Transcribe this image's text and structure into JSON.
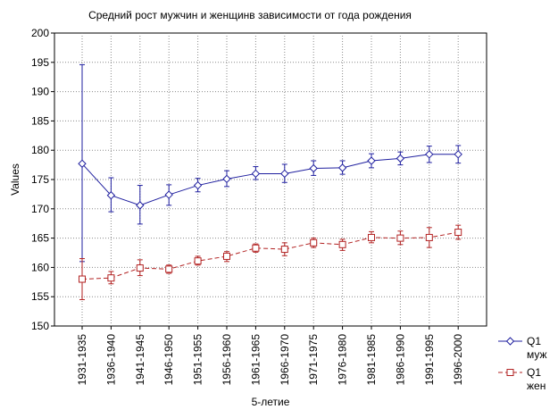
{
  "chart_data": {
    "type": "line",
    "title": "Средний рост мужчин и женщинв зависимости от года рождения",
    "xlabel": "5-летие",
    "ylabel": "Values",
    "ylim": [
      150,
      200
    ],
    "yticks": [
      "150",
      "155",
      "160",
      "165",
      "170",
      "175",
      "180",
      "185",
      "190",
      "195",
      "200"
    ],
    "grid": true,
    "legend_position": "bottom-right outside",
    "categories": [
      "1931-1935",
      "1936-1940",
      "1941-1945",
      "1946-1950",
      "1951-1955",
      "1956-1960",
      "1961-1965",
      "1966-1970",
      "1971-1975",
      "1976-1980",
      "1981-1985",
      "1986-1990",
      "1991-1995",
      "1996-2000"
    ],
    "series": [
      {
        "name": "Q1 муж",
        "legend_line1": "Q1",
        "legend_line2": "муж",
        "color": "#1f1f9f",
        "marker": "diamond",
        "line_style": "solid",
        "values": [
          177.7,
          172.3,
          170.6,
          172.4,
          174.0,
          175.1,
          176.0,
          176.0,
          176.9,
          177.0,
          178.2,
          178.6,
          179.3,
          179.3
        ],
        "err_low": [
          161.0,
          169.5,
          167.4,
          170.6,
          172.9,
          173.8,
          175.0,
          174.5,
          175.7,
          175.9,
          177.0,
          177.5,
          177.9,
          177.8
        ],
        "err_high": [
          194.6,
          175.3,
          174.0,
          174.1,
          175.2,
          176.5,
          177.2,
          177.6,
          178.2,
          178.2,
          179.4,
          179.7,
          180.7,
          180.8
        ]
      },
      {
        "name": "Q1 жен",
        "legend_line1": "Q1",
        "legend_line2": "жен",
        "color": "#b22222",
        "marker": "square",
        "line_style": "dashed",
        "values": [
          158.0,
          158.2,
          159.9,
          159.7,
          161.1,
          161.9,
          163.3,
          163.1,
          164.2,
          163.9,
          165.1,
          165.0,
          165.1,
          166.0
        ],
        "err_low": [
          154.5,
          157.2,
          158.6,
          159.0,
          160.4,
          161.0,
          162.6,
          162.0,
          163.4,
          162.9,
          164.2,
          163.9,
          163.4,
          164.8
        ],
        "err_high": [
          161.5,
          159.3,
          161.3,
          160.4,
          161.9,
          162.7,
          164.0,
          164.2,
          165.0,
          164.8,
          166.1,
          166.2,
          166.8,
          167.2
        ]
      }
    ]
  }
}
